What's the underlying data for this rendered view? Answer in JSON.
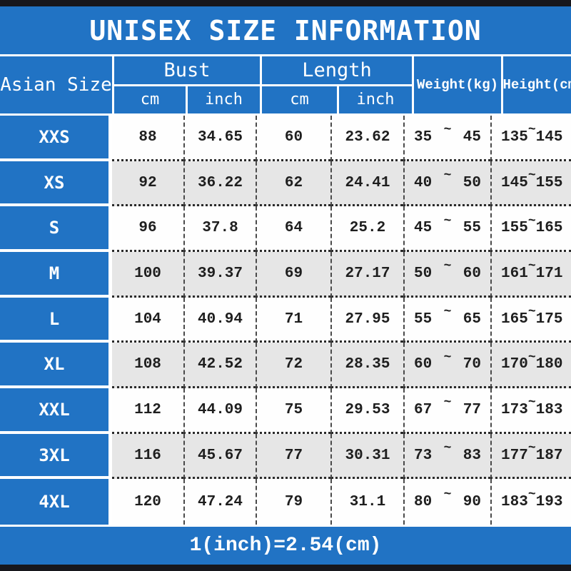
{
  "title": "UNISEX SIZE INFORMATION",
  "colors": {
    "accent_blue": "#2173c4",
    "bar_black": "#17171c",
    "row_alt_gray": "#e6e6e6"
  },
  "table": {
    "corner_header": "Asian Size",
    "bust_group": "Bust",
    "length_group": "Length",
    "sub_cm": "cm",
    "sub_inch": "inch",
    "weight_header": "Weight(kg)",
    "height_header": "Height(cm)",
    "range_separator": "~",
    "footer_note": "1(inch)=2.54(cm)"
  },
  "chart_data": {
    "type": "table",
    "title": "UNISEX SIZE INFORMATION",
    "columns": [
      "Asian Size",
      "Bust cm",
      "Bust inch",
      "Length cm",
      "Length inch",
      "Weight(kg)",
      "Height(cm)"
    ],
    "rows": [
      {
        "size": "XXS",
        "bust_cm": "88",
        "bust_inch": "34.65",
        "length_cm": "60",
        "length_inch": "23.62",
        "weight_min": "35",
        "weight_max": "45",
        "height_min": "135",
        "height_max": "145"
      },
      {
        "size": "XS",
        "bust_cm": "92",
        "bust_inch": "36.22",
        "length_cm": "62",
        "length_inch": "24.41",
        "weight_min": "40",
        "weight_max": "50",
        "height_min": "145",
        "height_max": "155"
      },
      {
        "size": "S",
        "bust_cm": "96",
        "bust_inch": "37.8",
        "length_cm": "64",
        "length_inch": "25.2",
        "weight_min": "45",
        "weight_max": "55",
        "height_min": "155",
        "height_max": "165"
      },
      {
        "size": "M",
        "bust_cm": "100",
        "bust_inch": "39.37",
        "length_cm": "69",
        "length_inch": "27.17",
        "weight_min": "50",
        "weight_max": "60",
        "height_min": "161",
        "height_max": "171"
      },
      {
        "size": "L",
        "bust_cm": "104",
        "bust_inch": "40.94",
        "length_cm": "71",
        "length_inch": "27.95",
        "weight_min": "55",
        "weight_max": "65",
        "height_min": "165",
        "height_max": "175"
      },
      {
        "size": "XL",
        "bust_cm": "108",
        "bust_inch": "42.52",
        "length_cm": "72",
        "length_inch": "28.35",
        "weight_min": "60",
        "weight_max": "70",
        "height_min": "170",
        "height_max": "180"
      },
      {
        "size": "XXL",
        "bust_cm": "112",
        "bust_inch": "44.09",
        "length_cm": "75",
        "length_inch": "29.53",
        "weight_min": "67",
        "weight_max": "77",
        "height_min": "173",
        "height_max": "183"
      },
      {
        "size": "3XL",
        "bust_cm": "116",
        "bust_inch": "45.67",
        "length_cm": "77",
        "length_inch": "30.31",
        "weight_min": "73",
        "weight_max": "83",
        "height_min": "177",
        "height_max": "187"
      },
      {
        "size": "4XL",
        "bust_cm": "120",
        "bust_inch": "47.24",
        "length_cm": "79",
        "length_inch": "31.1",
        "weight_min": "80",
        "weight_max": "90",
        "height_min": "183",
        "height_max": "193"
      }
    ],
    "footer_note": "1(inch)=2.54(cm)"
  }
}
